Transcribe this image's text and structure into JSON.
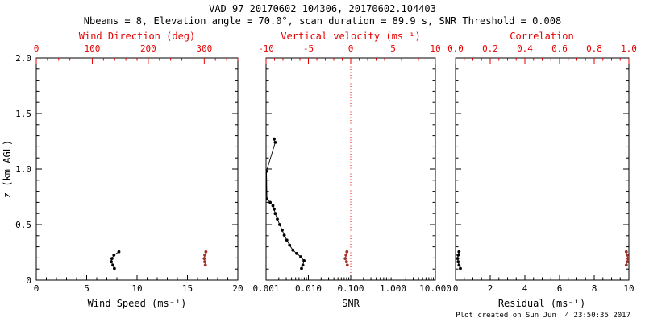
{
  "title": "VAD_97_20170602_104306, 20170602.104403",
  "subtitle": "Nbeams = 8, Elevation angle = 70.0°, scan duration = 89.9 s, SNR Threshold = 0.008",
  "footer": "Plot created on Sun Jun  4 23:50:35 2017",
  "ylabel": "z (km AGL)",
  "colors": {
    "axis": "#000000",
    "top_axis": "#e60000",
    "data_red": "#a0342a",
    "background": "#ffffff"
  },
  "yaxis": {
    "lim": [
      0,
      2
    ],
    "ticks": [
      0,
      0.5,
      1,
      1.5,
      2
    ],
    "tick_labels": [
      "0",
      "0.5",
      "1.0",
      "1.5",
      "2.0"
    ],
    "minor_step": 0.1
  },
  "chart_data": [
    {
      "type": "scatter",
      "xlabel_bottom": "Wind Speed (ms⁻¹)",
      "xlim_bottom": [
        0,
        20
      ],
      "xticks_bottom": [
        0,
        5,
        10,
        15,
        20
      ],
      "xtick_labels_bottom": [
        "0",
        "5",
        "10",
        "15",
        "20"
      ],
      "xminor_bottom": 1,
      "xlabel_top": "Wind Direction (deg)",
      "xlim_top": [
        0,
        360
      ],
      "xticks_top": [
        0,
        100,
        200,
        300
      ],
      "xtick_labels_top": [
        "0",
        "100",
        "200",
        "300"
      ],
      "xminor_top": 20,
      "series": [
        {
          "name": "wind-speed",
          "axis": "bottom",
          "color": "black",
          "connect": true,
          "points": [
            {
              "z": 0.255,
              "x": 8.2
            },
            {
              "z": 0.225,
              "x": 7.7
            },
            {
              "z": 0.195,
              "x": 7.5
            },
            {
              "z": 0.165,
              "x": 7.45
            },
            {
              "z": 0.135,
              "x": 7.6
            },
            {
              "z": 0.105,
              "x": 7.75
            }
          ]
        },
        {
          "name": "wind-direction",
          "axis": "top",
          "color": "dark_red",
          "connect": true,
          "points": [
            {
              "z": 0.255,
              "x": 303
            },
            {
              "z": 0.225,
              "x": 301
            },
            {
              "z": 0.195,
              "x": 300
            },
            {
              "z": 0.165,
              "x": 301
            },
            {
              "z": 0.135,
              "x": 302
            }
          ]
        }
      ]
    },
    {
      "type": "scatter",
      "xlabel_bottom": "SNR",
      "xscale_bottom": "log",
      "xlim_bottom": [
        0.001,
        10
      ],
      "xticks_bottom": [
        0.001,
        0.01,
        0.1,
        1,
        10
      ],
      "xtick_labels_bottom": [
        "0.001",
        "0.010",
        "0.100",
        "1.000",
        "10.000"
      ],
      "xlabel_top": "Vertical velocity (ms⁻¹)",
      "xlim_top": [
        -10,
        10
      ],
      "xticks_top": [
        -10,
        -5,
        0,
        5,
        10
      ],
      "xtick_labels_top": [
        "-10",
        "-5",
        "0",
        "5",
        "10"
      ],
      "xminor_top": 1,
      "zero_line_top": 0,
      "series": [
        {
          "name": "snr",
          "axis": "bottom",
          "color": "black",
          "connect": true,
          "points": [
            {
              "z": 1.27,
              "x": 0.00155
            },
            {
              "z": 1.24,
              "x": 0.00165
            },
            {
              "z": 0.98,
              "x": 0.00102
            },
            {
              "z": 0.73,
              "x": 0.00105
            },
            {
              "z": 0.7,
              "x": 0.00125
            },
            {
              "z": 0.67,
              "x": 0.00145
            },
            {
              "z": 0.64,
              "x": 0.00155
            },
            {
              "z": 0.6,
              "x": 0.00165
            },
            {
              "z": 0.55,
              "x": 0.00185
            },
            {
              "z": 0.5,
              "x": 0.0021
            },
            {
              "z": 0.45,
              "x": 0.0024
            },
            {
              "z": 0.405,
              "x": 0.0027
            },
            {
              "z": 0.36,
              "x": 0.0031
            },
            {
              "z": 0.315,
              "x": 0.0036
            },
            {
              "z": 0.27,
              "x": 0.0043
            },
            {
              "z": 0.24,
              "x": 0.0053
            },
            {
              "z": 0.21,
              "x": 0.0066
            },
            {
              "z": 0.175,
              "x": 0.0079
            },
            {
              "z": 0.135,
              "x": 0.0074
            },
            {
              "z": 0.105,
              "x": 0.0069
            }
          ]
        },
        {
          "name": "vertical-velocity",
          "axis": "top",
          "color": "dark_red",
          "connect": true,
          "points": [
            {
              "z": 0.255,
              "x": -0.45
            },
            {
              "z": 0.225,
              "x": -0.55
            },
            {
              "z": 0.195,
              "x": -0.65
            },
            {
              "z": 0.165,
              "x": -0.5
            },
            {
              "z": 0.135,
              "x": -0.4
            }
          ]
        }
      ]
    },
    {
      "type": "scatter",
      "xlabel_bottom": "Residual (ms⁻¹)",
      "xlim_bottom": [
        0,
        10
      ],
      "xticks_bottom": [
        0,
        2,
        4,
        6,
        8,
        10
      ],
      "xtick_labels_bottom": [
        "0",
        "2",
        "4",
        "6",
        "8",
        "10"
      ],
      "xminor_bottom": 0.5,
      "xlabel_top": "Correlation",
      "xlim_top": [
        0,
        1
      ],
      "xticks_top": [
        0,
        0.2,
        0.4,
        0.6,
        0.8,
        1
      ],
      "xtick_labels_top": [
        "0.0",
        "0.2",
        "0.4",
        "0.6",
        "0.8",
        "1.0"
      ],
      "xminor_top": 0.05,
      "series": [
        {
          "name": "residual",
          "axis": "bottom",
          "color": "black",
          "connect": true,
          "points": [
            {
              "z": 0.255,
              "x": 0.2
            },
            {
              "z": 0.225,
              "x": 0.15
            },
            {
              "z": 0.195,
              "x": 0.12
            },
            {
              "z": 0.165,
              "x": 0.15
            },
            {
              "z": 0.135,
              "x": 0.2
            },
            {
              "z": 0.105,
              "x": 0.28
            }
          ]
        },
        {
          "name": "correlation",
          "axis": "top",
          "color": "dark_red",
          "connect": true,
          "points": [
            {
              "z": 0.255,
              "x": 0.985
            },
            {
              "z": 0.225,
              "x": 0.99
            },
            {
              "z": 0.195,
              "x": 0.995
            },
            {
              "z": 0.165,
              "x": 0.99
            },
            {
              "z": 0.135,
              "x": 0.985
            }
          ]
        }
      ]
    }
  ]
}
